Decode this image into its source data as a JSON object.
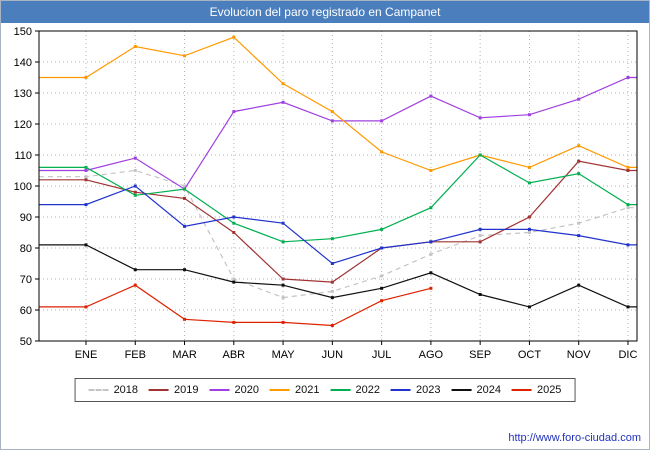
{
  "window": {
    "title": "Evolucion del paro registrado en Campanet"
  },
  "footer": {
    "link": "http://www.foro-ciudad.com",
    "link_color": "#2233bb"
  },
  "colors": {
    "titlebar_bg": "#4a7ebc",
    "titlebar_text": "#ffffff"
  },
  "chart_data": {
    "type": "line",
    "title": "Evolucion del paro registrado en Campanet",
    "xlabel": "",
    "ylabel": "",
    "ylim": [
      50,
      150
    ],
    "yticks": [
      50,
      60,
      70,
      80,
      90,
      100,
      110,
      120,
      130,
      140,
      150
    ],
    "grid": true,
    "legend_position": "bottom",
    "categories": [
      "ENE",
      "FEB",
      "MAR",
      "ABR",
      "MAY",
      "JUN",
      "JUL",
      "AGO",
      "SEP",
      "OCT",
      "NOV",
      "DIC"
    ],
    "series": [
      {
        "name": "2018",
        "color": "#c4c4c4",
        "style": "dashed",
        "values": [
          103,
          105,
          100,
          70,
          64,
          66,
          71,
          78,
          84,
          85,
          88,
          93
        ]
      },
      {
        "name": "2019",
        "color": "#a03333",
        "style": "solid",
        "values": [
          102,
          98,
          96,
          85,
          70,
          69,
          80,
          82,
          82,
          90,
          108,
          105
        ]
      },
      {
        "name": "2020",
        "color": "#a040e0",
        "style": "solid",
        "values": [
          105,
          109,
          99,
          124,
          127,
          121,
          121,
          129,
          122,
          123,
          128,
          135
        ]
      },
      {
        "name": "2021",
        "color": "#ff9900",
        "style": "solid",
        "values": [
          135,
          145,
          142,
          148,
          133,
          124,
          111,
          105,
          110,
          106,
          113,
          106
        ]
      },
      {
        "name": "2022",
        "color": "#00b050",
        "style": "solid",
        "values": [
          106,
          97,
          99,
          88,
          82,
          83,
          86,
          93,
          110,
          101,
          104,
          94
        ]
      },
      {
        "name": "2023",
        "color": "#2233cc",
        "style": "solid",
        "values": [
          94,
          100,
          87,
          90,
          88,
          75,
          80,
          82,
          86,
          86,
          84,
          81
        ]
      },
      {
        "name": "2024",
        "color": "#101010",
        "style": "solid",
        "values": [
          81,
          73,
          73,
          69,
          68,
          64,
          67,
          72,
          65,
          61,
          68,
          61
        ]
      },
      {
        "name": "2025",
        "color": "#dd2200",
        "style": "solid",
        "values": [
          61,
          68,
          57,
          56,
          56,
          55,
          63,
          67,
          null,
          null,
          null,
          null
        ]
      }
    ]
  }
}
